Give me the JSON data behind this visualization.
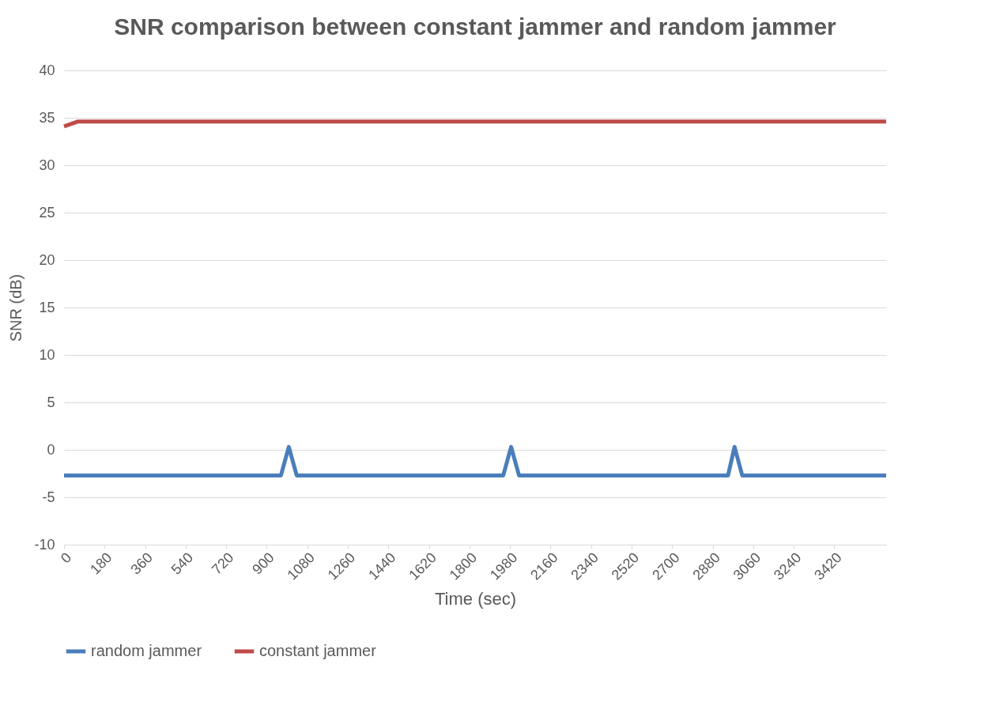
{
  "chart_data": {
    "type": "line",
    "title": "SNR comparison between constant jammer and random jammer",
    "xlabel": "Time (sec)",
    "ylabel": "SNR (dB)",
    "xlim": [
      0,
      3650
    ],
    "xticks": [
      0,
      180,
      360,
      540,
      720,
      900,
      1080,
      1260,
      1440,
      1620,
      1800,
      1980,
      2160,
      2340,
      2520,
      2700,
      2880,
      3060,
      3240,
      3420
    ],
    "ylim": [
      -10,
      40
    ],
    "yticks": [
      -10,
      -5,
      0,
      5,
      10,
      15,
      20,
      25,
      30,
      35,
      40
    ],
    "grid": "y",
    "legend": "bottom",
    "line_style": "solid",
    "marker": "none",
    "series": [
      {
        "name": "random jammer",
        "color": "#4a7ebb",
        "x": [
          0,
          963,
          998,
          1033,
          1950,
          1985,
          2020,
          2948,
          2977,
          3011,
          3650
        ],
        "values": [
          -2.7,
          -2.7,
          0.3,
          -2.7,
          -2.7,
          0.3,
          -2.7,
          -2.7,
          0.3,
          -2.7,
          -2.7
        ]
      },
      {
        "name": "constant jammer",
        "color": "#be4b48",
        "x": [
          0,
          60,
          3650
        ],
        "values": [
          34.1,
          34.6,
          34.6
        ]
      }
    ]
  }
}
